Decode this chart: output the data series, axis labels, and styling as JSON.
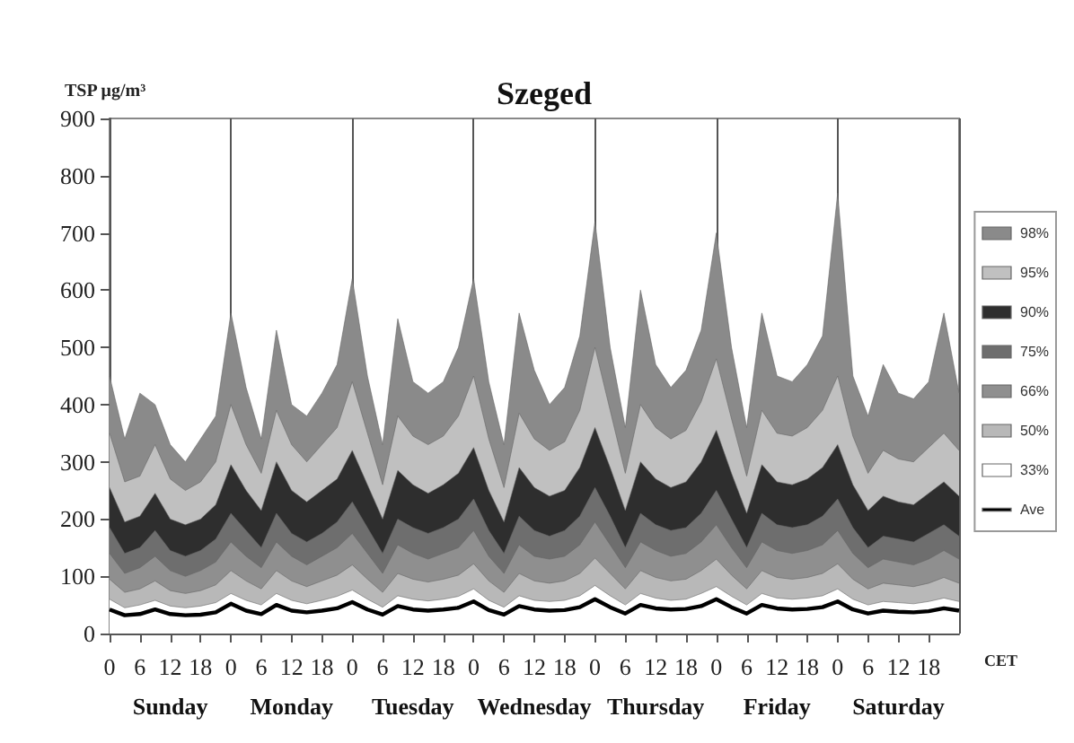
{
  "chart_data": {
    "type": "area",
    "title": "Szeged",
    "xlabel": "CET",
    "ylabel": "TSP μg/m³",
    "legend": "right",
    "marker": "none",
    "categories": [
      "0",
      null,
      "6",
      null,
      "12",
      null,
      "18",
      null,
      "0",
      null,
      "6",
      null,
      "12",
      null,
      "18",
      null,
      "0",
      null,
      "6",
      null,
      "12",
      null,
      "18",
      null,
      "0",
      null,
      "6",
      null,
      "12",
      null,
      "18",
      null,
      "0",
      null,
      "6",
      null,
      "12",
      null,
      "18",
      null,
      "0",
      null,
      "6",
      null,
      "12",
      null,
      "18",
      null,
      "0",
      null,
      "6",
      null,
      "12",
      null,
      "18",
      null,
      null
    ],
    "annotations": [
      "Sunday",
      "Monday",
      "Tuesday",
      "Wednesday",
      "Thursday",
      "Friday",
      "Saturday"
    ],
    "series": [
      {
        "name": "98%",
        "color": "#8a8a8a",
        "values": [
          450,
          340,
          420,
          400,
          330,
          300,
          340,
          380,
          560,
          430,
          340,
          530,
          400,
          380,
          420,
          470,
          620,
          450,
          330,
          550,
          440,
          420,
          440,
          500,
          620,
          440,
          330,
          560,
          460,
          400,
          430,
          520,
          720,
          500,
          360,
          600,
          470,
          430,
          460,
          530,
          700,
          500,
          360,
          560,
          450,
          440,
          470,
          520,
          770,
          450,
          380,
          470,
          420,
          410,
          440,
          560,
          420
        ]
      },
      {
        "name": "95%",
        "color": "#c0c0c0",
        "values": [
          350,
          265,
          275,
          330,
          270,
          250,
          265,
          300,
          400,
          330,
          280,
          390,
          330,
          300,
          330,
          360,
          440,
          350,
          260,
          380,
          345,
          330,
          345,
          380,
          450,
          340,
          255,
          385,
          340,
          320,
          335,
          390,
          500,
          390,
          280,
          400,
          360,
          340,
          355,
          405,
          480,
          375,
          275,
          390,
          350,
          345,
          360,
          390,
          450,
          345,
          280,
          320,
          305,
          300,
          325,
          350,
          320
        ]
      },
      {
        "name": "90%",
        "color": "#2e2e2e",
        "values": [
          255,
          195,
          205,
          245,
          200,
          190,
          200,
          225,
          295,
          250,
          215,
          300,
          250,
          230,
          250,
          270,
          320,
          260,
          200,
          285,
          260,
          245,
          260,
          280,
          325,
          250,
          195,
          290,
          255,
          240,
          250,
          290,
          360,
          290,
          215,
          300,
          270,
          255,
          265,
          300,
          355,
          280,
          210,
          295,
          265,
          260,
          270,
          290,
          330,
          260,
          215,
          240,
          230,
          225,
          245,
          265,
          240
        ]
      },
      {
        "name": "75%",
        "color": "#6e6e6e",
        "values": [
          185,
          140,
          150,
          180,
          145,
          135,
          145,
          165,
          210,
          180,
          150,
          210,
          175,
          160,
          175,
          195,
          230,
          185,
          140,
          200,
          185,
          175,
          185,
          200,
          235,
          180,
          140,
          205,
          180,
          170,
          180,
          205,
          255,
          205,
          150,
          210,
          190,
          180,
          185,
          210,
          250,
          200,
          150,
          210,
          190,
          185,
          190,
          205,
          235,
          185,
          150,
          170,
          165,
          160,
          175,
          190,
          170
        ]
      },
      {
        "name": "66%",
        "color": "#8f8f8f",
        "values": [
          140,
          105,
          115,
          135,
          110,
          100,
          110,
          125,
          160,
          135,
          115,
          160,
          135,
          120,
          135,
          150,
          175,
          140,
          105,
          155,
          140,
          130,
          140,
          150,
          180,
          135,
          105,
          155,
          135,
          130,
          135,
          155,
          195,
          155,
          115,
          160,
          145,
          135,
          140,
          160,
          190,
          150,
          115,
          160,
          145,
          140,
          145,
          155,
          180,
          140,
          115,
          130,
          125,
          120,
          130,
          145,
          130
        ]
      },
      {
        "name": "50%",
        "color": "#b8b8b8",
        "values": [
          95,
          72,
          78,
          92,
          75,
          70,
          75,
          85,
          110,
          92,
          78,
          110,
          92,
          82,
          92,
          102,
          120,
          95,
          72,
          105,
          95,
          90,
          95,
          102,
          122,
          92,
          72,
          105,
          92,
          88,
          92,
          105,
          132,
          105,
          78,
          110,
          98,
          92,
          95,
          110,
          130,
          102,
          78,
          110,
          98,
          95,
          98,
          105,
          122,
          95,
          78,
          88,
          85,
          82,
          88,
          98,
          88
        ]
      },
      {
        "name": "33%",
        "color": "#ffffff",
        "values": [
          60,
          45,
          50,
          58,
          48,
          45,
          48,
          54,
          70,
          58,
          50,
          70,
          58,
          52,
          58,
          65,
          76,
          60,
          46,
          66,
          60,
          57,
          60,
          65,
          78,
          58,
          46,
          66,
          58,
          56,
          58,
          66,
          84,
          66,
          50,
          70,
          62,
          58,
          60,
          70,
          82,
          65,
          50,
          70,
          62,
          60,
          62,
          66,
          78,
          60,
          50,
          56,
          54,
          52,
          56,
          62,
          56
        ]
      },
      {
        "name": "Ave",
        "type": "line",
        "color": "#000000",
        "values": [
          42,
          32,
          34,
          42,
          34,
          32,
          33,
          37,
          52,
          40,
          34,
          50,
          40,
          37,
          40,
          44,
          55,
          42,
          33,
          48,
          42,
          40,
          42,
          45,
          56,
          41,
          33,
          48,
          42,
          40,
          41,
          46,
          60,
          46,
          35,
          50,
          44,
          42,
          43,
          48,
          60,
          46,
          35,
          50,
          44,
          42,
          43,
          46,
          56,
          42,
          35,
          40,
          38,
          37,
          39,
          44,
          40
        ]
      }
    ],
    "ylim": [
      0,
      900
    ],
    "yticks": [
      0,
      100,
      200,
      300,
      400,
      500,
      600,
      700,
      800,
      900
    ],
    "grid": "x"
  }
}
